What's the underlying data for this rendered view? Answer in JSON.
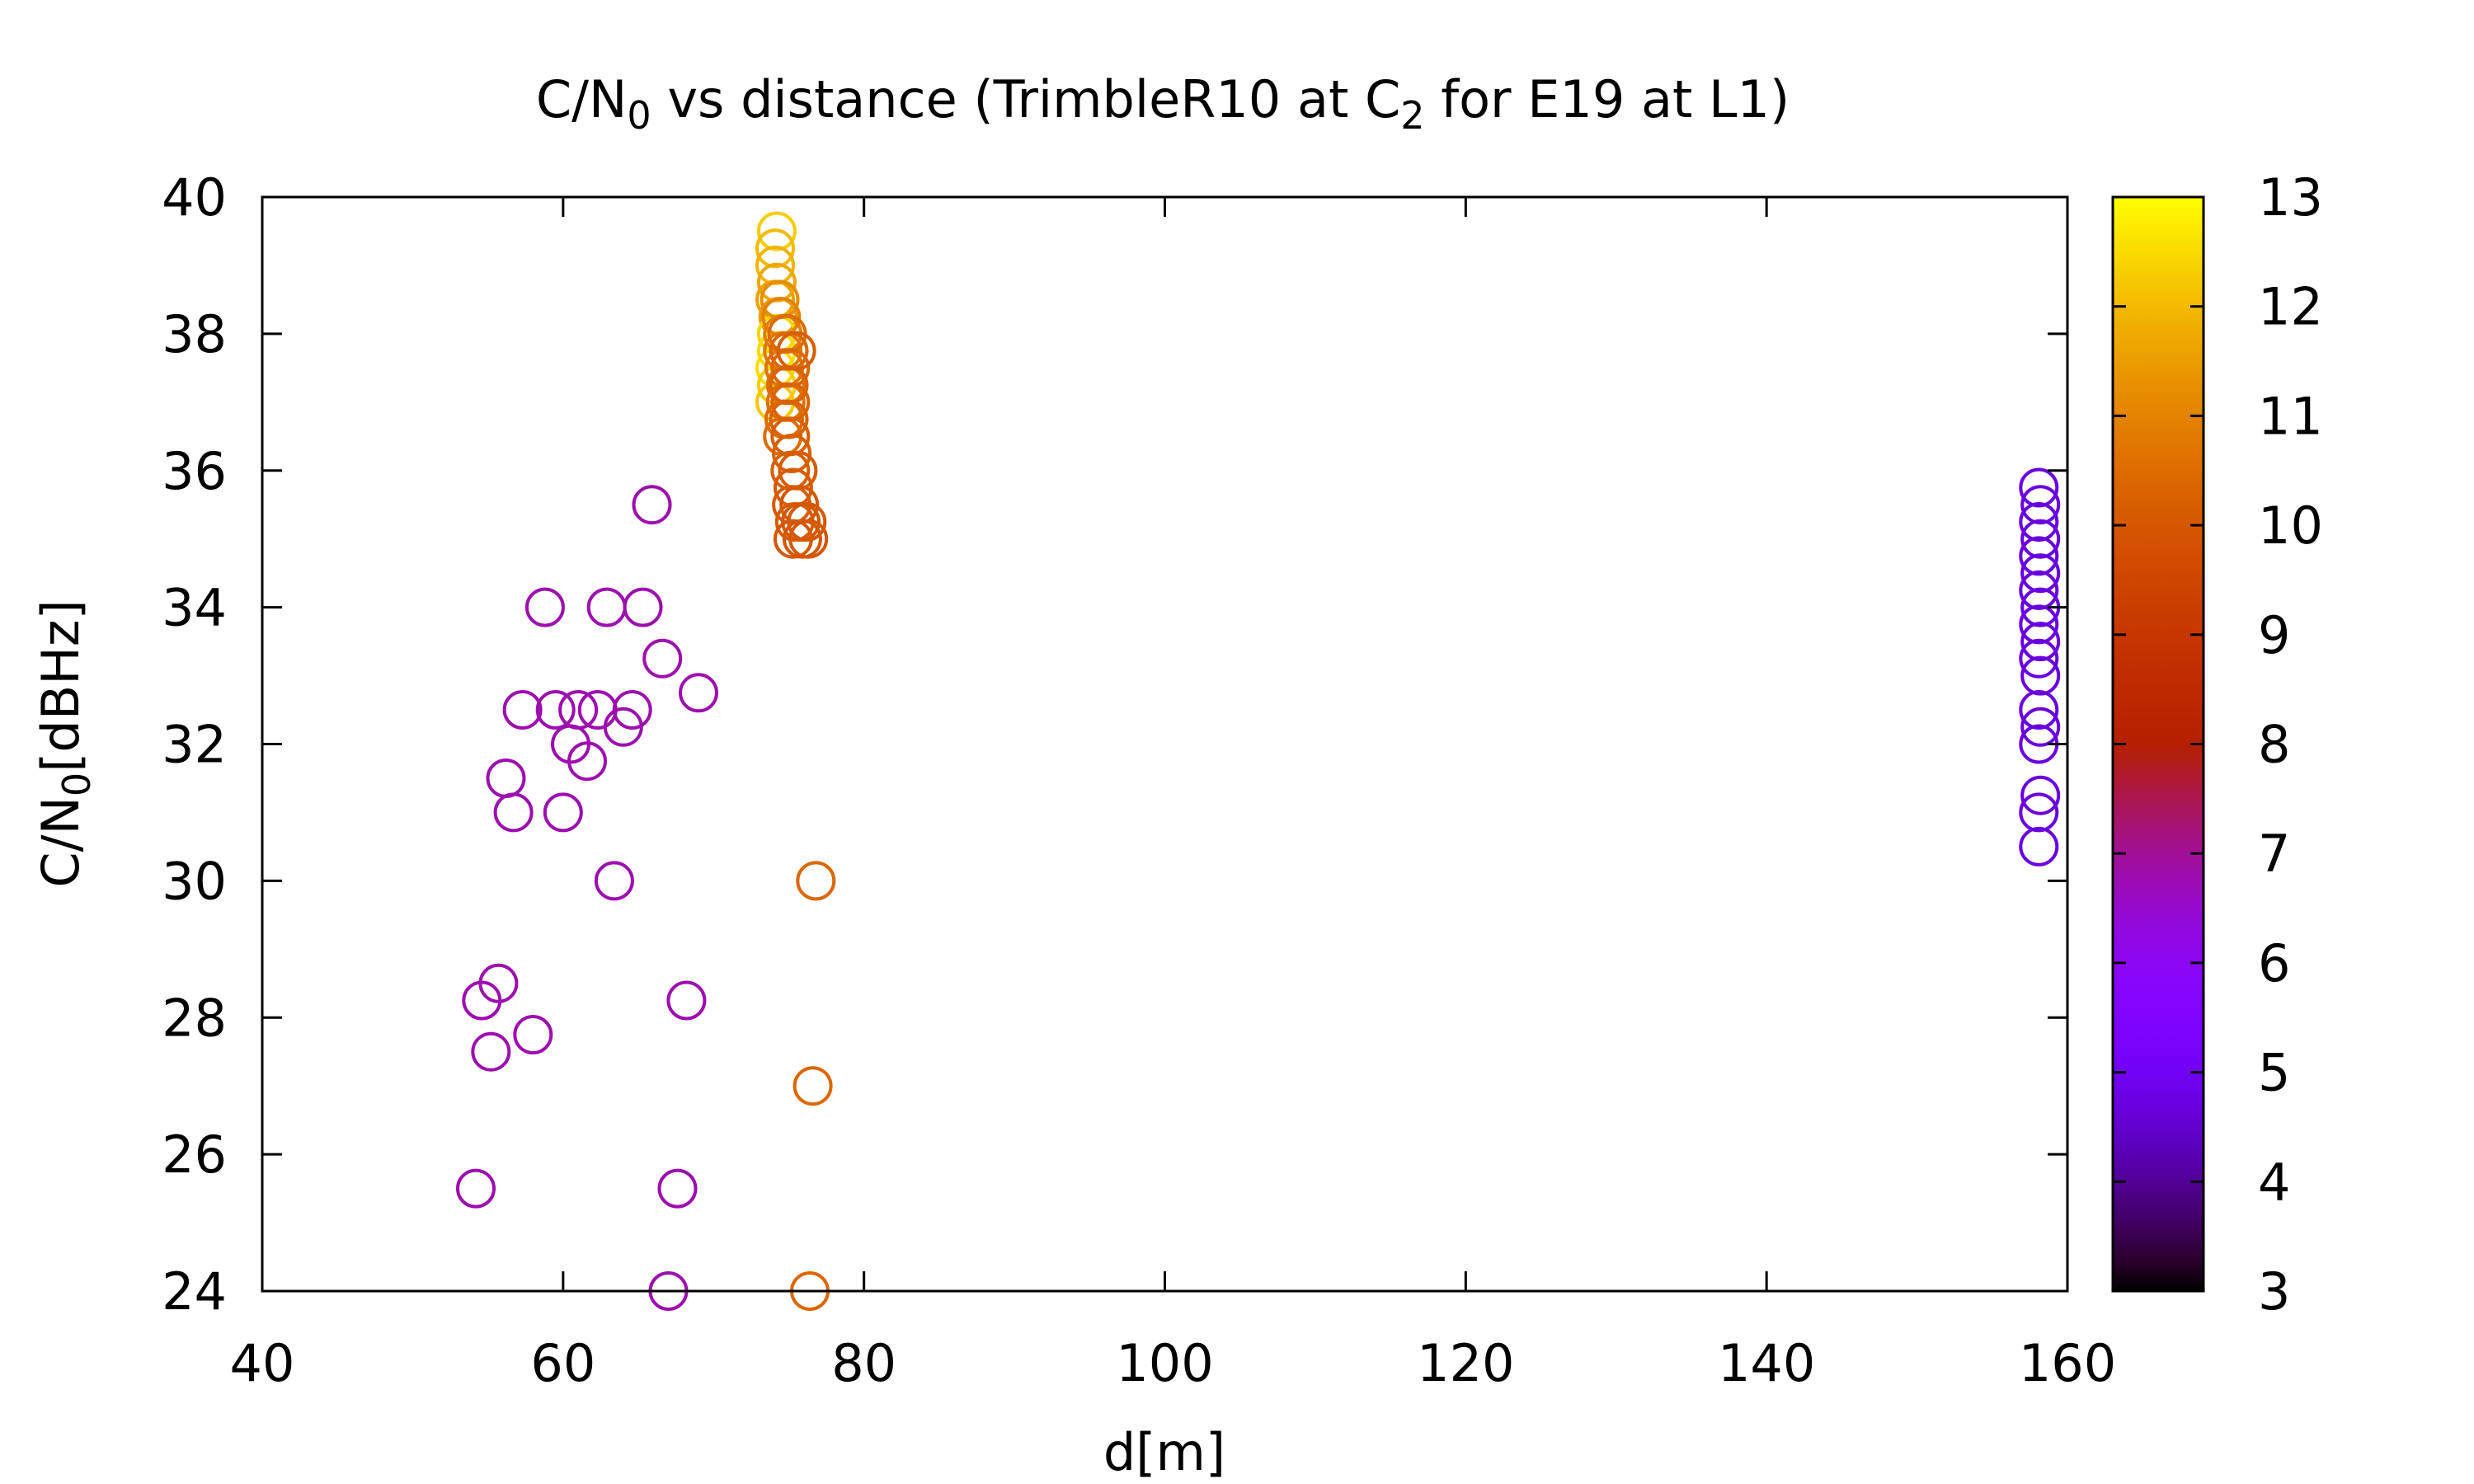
{
  "chart_data": {
    "type": "scatter",
    "title": {
      "prefix": "C/N",
      "prefix_sub": "0",
      "middle": " vs distance (TrimbleR10 at C",
      "middle_sub": "2",
      "suffix": " for E19 at L1)"
    },
    "xlabel": "d[m]",
    "ylabel": {
      "main": "C/N",
      "sub": "0",
      "rest": "[dBHz]"
    },
    "xlim": [
      40,
      160
    ],
    "ylim": [
      24,
      40
    ],
    "x_ticks": [
      40,
      60,
      80,
      100,
      120,
      140,
      160
    ],
    "y_ticks": [
      24,
      26,
      28,
      30,
      32,
      34,
      36,
      38,
      40
    ],
    "colorbar": {
      "range": [
        3,
        13
      ],
      "ticks": [
        3,
        4,
        5,
        6,
        7,
        8,
        9,
        10,
        11,
        12,
        13
      ],
      "palette": "gnuplot-default"
    },
    "marker": "open-circle",
    "grid": false,
    "points": [
      {
        "x": 54.2,
        "y": 25.5,
        "c": 6.8
      },
      {
        "x": 54.6,
        "y": 28.25,
        "c": 6.8
      },
      {
        "x": 55.2,
        "y": 27.5,
        "c": 6.8
      },
      {
        "x": 55.7,
        "y": 28.5,
        "c": 6.8
      },
      {
        "x": 56.2,
        "y": 31.5,
        "c": 6.8
      },
      {
        "x": 56.7,
        "y": 31.0,
        "c": 6.8
      },
      {
        "x": 57.3,
        "y": 32.5,
        "c": 6.8
      },
      {
        "x": 58.0,
        "y": 27.75,
        "c": 6.8
      },
      {
        "x": 58.8,
        "y": 34.0,
        "c": 6.8
      },
      {
        "x": 59.5,
        "y": 32.5,
        "c": 6.8
      },
      {
        "x": 60.0,
        "y": 31.0,
        "c": 6.8
      },
      {
        "x": 60.5,
        "y": 32.0,
        "c": 6.8
      },
      {
        "x": 61.0,
        "y": 32.5,
        "c": 6.8
      },
      {
        "x": 61.6,
        "y": 31.75,
        "c": 6.8
      },
      {
        "x": 62.3,
        "y": 32.5,
        "c": 6.8
      },
      {
        "x": 62.9,
        "y": 34.0,
        "c": 6.8
      },
      {
        "x": 63.4,
        "y": 30.0,
        "c": 6.8
      },
      {
        "x": 64.0,
        "y": 32.25,
        "c": 6.8
      },
      {
        "x": 64.6,
        "y": 32.5,
        "c": 6.8
      },
      {
        "x": 65.3,
        "y": 34.0,
        "c": 6.8
      },
      {
        "x": 65.9,
        "y": 35.5,
        "c": 6.8
      },
      {
        "x": 66.6,
        "y": 33.25,
        "c": 6.8
      },
      {
        "x": 67.0,
        "y": 24.0,
        "c": 6.8
      },
      {
        "x": 67.6,
        "y": 25.5,
        "c": 6.8
      },
      {
        "x": 68.2,
        "y": 28.25,
        "c": 6.8
      },
      {
        "x": 69.0,
        "y": 32.75,
        "c": 6.8
      },
      {
        "x": 74.2,
        "y": 39.5,
        "c": 12.3
      },
      {
        "x": 74.1,
        "y": 39.25,
        "c": 12.0
      },
      {
        "x": 74.1,
        "y": 39.0,
        "c": 11.9
      },
      {
        "x": 74.2,
        "y": 38.75,
        "c": 11.7
      },
      {
        "x": 74.1,
        "y": 38.5,
        "c": 11.6
      },
      {
        "x": 74.3,
        "y": 38.25,
        "c": 11.5
      },
      {
        "x": 74.2,
        "y": 38.0,
        "c": 12.4
      },
      {
        "x": 74.2,
        "y": 37.75,
        "c": 12.5
      },
      {
        "x": 74.1,
        "y": 37.5,
        "c": 12.5
      },
      {
        "x": 74.2,
        "y": 37.25,
        "c": 12.3
      },
      {
        "x": 74.1,
        "y": 37.0,
        "c": 12.2
      },
      {
        "x": 74.4,
        "y": 38.5,
        "c": 11.2
      },
      {
        "x": 74.5,
        "y": 38.25,
        "c": 11.0
      },
      {
        "x": 74.6,
        "y": 38.0,
        "c": 10.9
      },
      {
        "x": 74.6,
        "y": 37.75,
        "c": 10.8
      },
      {
        "x": 74.7,
        "y": 37.5,
        "c": 10.7
      },
      {
        "x": 74.8,
        "y": 37.25,
        "c": 10.6
      },
      {
        "x": 74.8,
        "y": 37.0,
        "c": 10.6
      },
      {
        "x": 74.7,
        "y": 36.75,
        "c": 10.5
      },
      {
        "x": 74.6,
        "y": 36.5,
        "c": 10.5
      },
      {
        "x": 74.9,
        "y": 38.0,
        "c": 10.5
      },
      {
        "x": 75.0,
        "y": 37.75,
        "c": 10.4
      },
      {
        "x": 75.1,
        "y": 37.5,
        "c": 10.4
      },
      {
        "x": 75.0,
        "y": 37.25,
        "c": 10.3
      },
      {
        "x": 75.1,
        "y": 37.0,
        "c": 10.3
      },
      {
        "x": 75.0,
        "y": 36.75,
        "c": 10.3
      },
      {
        "x": 75.1,
        "y": 36.5,
        "c": 10.2
      },
      {
        "x": 75.2,
        "y": 36.25,
        "c": 10.2
      },
      {
        "x": 75.1,
        "y": 36.0,
        "c": 10.2
      },
      {
        "x": 75.3,
        "y": 35.75,
        "c": 10.1
      },
      {
        "x": 75.2,
        "y": 35.5,
        "c": 10.1
      },
      {
        "x": 75.4,
        "y": 35.25,
        "c": 10.1
      },
      {
        "x": 75.3,
        "y": 35.0,
        "c": 10.0
      },
      {
        "x": 75.5,
        "y": 37.75,
        "c": 10.2
      },
      {
        "x": 75.6,
        "y": 36.0,
        "c": 10.1
      },
      {
        "x": 75.7,
        "y": 35.5,
        "c": 10.0
      },
      {
        "x": 75.8,
        "y": 35.25,
        "c": 10.0
      },
      {
        "x": 75.9,
        "y": 35.0,
        "c": 10.0
      },
      {
        "x": 76.2,
        "y": 35.25,
        "c": 10.0
      },
      {
        "x": 76.3,
        "y": 35.0,
        "c": 10.0
      },
      {
        "x": 76.4,
        "y": 24.0,
        "c": 10.4
      },
      {
        "x": 76.6,
        "y": 27.0,
        "c": 10.4
      },
      {
        "x": 76.8,
        "y": 30.0,
        "c": 10.4
      },
      {
        "x": 158.1,
        "y": 35.75,
        "c": 4.7
      },
      {
        "x": 158.2,
        "y": 35.5,
        "c": 4.7
      },
      {
        "x": 158.1,
        "y": 35.25,
        "c": 4.7
      },
      {
        "x": 158.2,
        "y": 35.0,
        "c": 4.7
      },
      {
        "x": 158.1,
        "y": 34.75,
        "c": 4.7
      },
      {
        "x": 158.2,
        "y": 34.5,
        "c": 4.7
      },
      {
        "x": 158.1,
        "y": 34.25,
        "c": 4.7
      },
      {
        "x": 158.2,
        "y": 34.0,
        "c": 4.7
      },
      {
        "x": 158.1,
        "y": 33.75,
        "c": 4.7
      },
      {
        "x": 158.2,
        "y": 33.5,
        "c": 4.7
      },
      {
        "x": 158.1,
        "y": 33.25,
        "c": 4.7
      },
      {
        "x": 158.2,
        "y": 33.0,
        "c": 4.7
      },
      {
        "x": 158.1,
        "y": 32.5,
        "c": 4.7
      },
      {
        "x": 158.2,
        "y": 32.25,
        "c": 4.7
      },
      {
        "x": 158.1,
        "y": 32.0,
        "c": 4.7
      },
      {
        "x": 158.2,
        "y": 31.25,
        "c": 4.7
      },
      {
        "x": 158.1,
        "y": 31.0,
        "c": 4.7
      },
      {
        "x": 158.1,
        "y": 30.5,
        "c": 4.7
      }
    ]
  }
}
